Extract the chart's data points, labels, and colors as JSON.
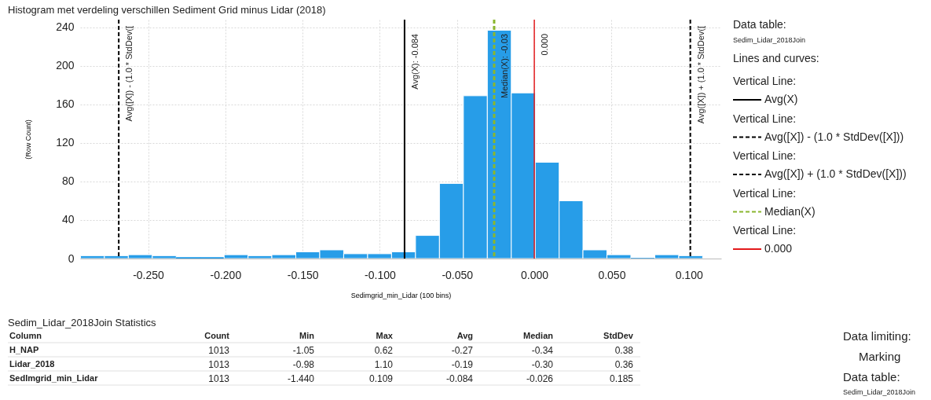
{
  "chart_data": {
    "type": "histogram",
    "title": "Histogram met verdeling verschillen Sediment Grid minus Lidar (2018)",
    "xlabel": "Sedimgrid_min_Lidar (100 bins)",
    "ylabel": "(Row Count)",
    "bins": [
      -0.2938,
      -0.2783,
      -0.2628,
      -0.2473,
      -0.2318,
      -0.2163,
      -0.2008,
      -0.1853,
      -0.1699,
      -0.1544,
      -0.1389,
      -0.1234,
      -0.1079,
      -0.0924,
      -0.0769,
      -0.0614,
      -0.0459,
      -0.0304,
      -0.0149,
      0.0006,
      0.0161,
      0.0315,
      0.047,
      0.0625,
      0.078,
      0.0935,
      0.109
    ],
    "values": [
      3,
      3,
      4,
      3,
      1,
      1,
      4,
      3,
      4,
      7,
      9,
      5,
      5,
      7,
      24,
      78,
      169,
      237,
      172,
      100,
      60,
      9,
      4,
      0,
      4,
      3
    ],
    "color": "#279de8",
    "xlim": [
      -0.294,
      0.121
    ],
    "xticks": [
      {
        "value": -0.25,
        "label": "-0.250"
      },
      {
        "value": -0.2,
        "label": "-0.200"
      },
      {
        "value": -0.15,
        "label": "-0.150"
      },
      {
        "value": -0.1,
        "label": "-0.100"
      },
      {
        "value": -0.05,
        "label": "-0.050"
      },
      {
        "value": 0,
        "label": "0.000"
      },
      {
        "value": 0.05,
        "label": "0.050"
      },
      {
        "value": 0.1,
        "label": "0.100"
      }
    ],
    "ylim": [
      0,
      248
    ],
    "yticks": [
      0,
      40,
      80,
      120,
      160,
      200,
      240
    ],
    "grid": true,
    "legend": "right",
    "ref_lines": [
      {
        "axis": "x",
        "value": -0.084,
        "label": "Avg(X): -0.084",
        "color": "#000000",
        "line_style": "solid"
      },
      {
        "axis": "x",
        "value": -0.269,
        "label": "Avg([X]) - (1.0 * StdDev([",
        "color": "#000000",
        "line_style": "dashed"
      },
      {
        "axis": "x",
        "value": 0.101,
        "label": "Avg([X]) + (1.0 * StdDev([",
        "color": "#000000",
        "line_style": "dashed"
      },
      {
        "axis": "x",
        "value": -0.026,
        "label": "Median(X): -0.03",
        "color": "#8ab62f",
        "line_style": "dashed"
      },
      {
        "axis": "x",
        "value": 0,
        "label": "0.000",
        "color": "#e31a1c",
        "line_style": "solid"
      }
    ],
    "annotations": [
      "Data table:",
      "Sedim_Lidar_2018Join",
      "Lines and curves:",
      "Vertical Line:",
      "Avg(X)",
      "Vertical Line:",
      "Avg([X]) - (1.0 * StdDev([X]))",
      "Vertical Line:",
      "Avg([X]) + (1.0 * StdDev([X]))",
      "Vertical Line:",
      "Median(X)",
      "Vertical Line:",
      "0.000",
      "Sedim_Lidar_2018Join Statistics",
      "Column",
      "Count",
      "Min",
      "Max",
      "Avg",
      "Median",
      "StdDev",
      "H_NAP",
      "1013",
      "-1.05",
      "0.62",
      "-0.27",
      "-0.34",
      "0.38",
      "Lidar_2018",
      "1013",
      "-0.98",
      "1.10",
      "-0.19",
      "-0.30",
      "0.36",
      "SedImgrid_min_Lidar",
      "1013",
      "-1.440",
      "0.109",
      "-0.084",
      "-0.026",
      "0.185",
      "Data limiting:",
      "Marking",
      "Data table:",
      "Sedim_Lidar_2018Join"
    ]
  }
}
